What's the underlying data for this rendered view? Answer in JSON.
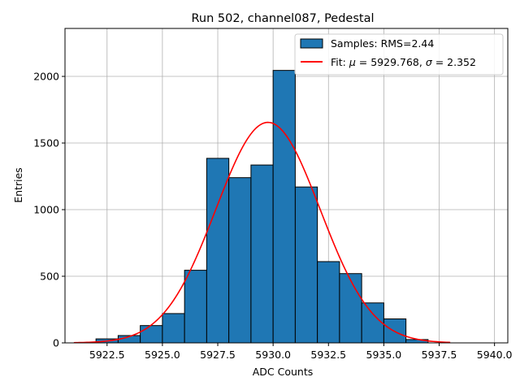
{
  "chart_data": {
    "type": "bar",
    "title": "Run 502, channel087, Pedestal",
    "xlabel": "ADC Counts",
    "ylabel": "Entries",
    "xlim": [
      5920.6,
      5940.6
    ],
    "ylim": [
      0,
      2360
    ],
    "xticks": [
      5922.5,
      5925.0,
      5927.5,
      5930.0,
      5932.5,
      5935.0,
      5937.5,
      5940.0
    ],
    "xtick_labels": [
      "5922.5",
      "5925.0",
      "5927.5",
      "5930.0",
      "5932.5",
      "5935.0",
      "5937.5",
      "5940.0"
    ],
    "yticks": [
      0,
      500,
      1000,
      1500,
      2000
    ],
    "ytick_labels": [
      "0",
      "500",
      "1000",
      "1500",
      "2000"
    ],
    "grid": true,
    "legend_position": "top-right",
    "histogram": {
      "name": "Samples: RMS=2.44",
      "bin_width": 1,
      "bin_edges": [
        5922,
        5923,
        5924,
        5925,
        5926,
        5927,
        5928,
        5929,
        5930,
        5931,
        5932,
        5933,
        5934,
        5935,
        5936,
        5937
      ],
      "counts": [
        30,
        55,
        130,
        220,
        545,
        1385,
        1240,
        1335,
        2045,
        1170,
        610,
        520,
        300,
        180,
        25
      ],
      "color": "#1f77b4",
      "edge_color": "#000000"
    },
    "fit": {
      "name": "Fit: μ = 5929.768, σ = 2.352",
      "legend_parts": [
        "Fit: ",
        "μ",
        " = 5929.768, ",
        "σ",
        " = 2.352"
      ],
      "mu": 5929.768,
      "sigma": 2.352,
      "amplitude": 1655,
      "x_range": [
        5921.0,
        5938.0
      ],
      "color": "#ff0000"
    }
  }
}
